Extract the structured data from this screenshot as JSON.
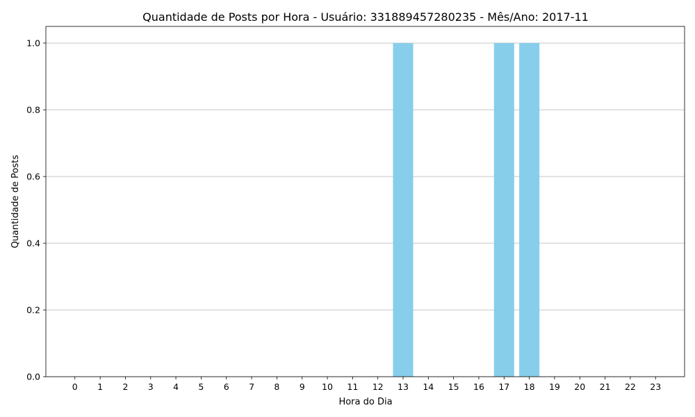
{
  "chart_data": {
    "type": "bar",
    "title": "Quantidade de Posts por Hora - Usuário: 331889457280235 - Mês/Ano: 2017-11",
    "xlabel": "Hora do Dia",
    "ylabel": "Quantidade de Posts",
    "categories": [
      "0",
      "1",
      "2",
      "3",
      "4",
      "5",
      "6",
      "7",
      "8",
      "9",
      "10",
      "11",
      "12",
      "13",
      "14",
      "15",
      "16",
      "17",
      "18",
      "19",
      "20",
      "21",
      "22",
      "23"
    ],
    "values": [
      0,
      0,
      0,
      0,
      0,
      0,
      0,
      0,
      0,
      0,
      0,
      0,
      0,
      1,
      0,
      0,
      0,
      1,
      1,
      0,
      0,
      0,
      0,
      0
    ],
    "ylim": [
      0,
      1.05
    ],
    "yticks": [
      "0.0",
      "0.2",
      "0.4",
      "0.6",
      "0.8",
      "1.0"
    ],
    "grid": "y",
    "bar_color": "#87ceeb"
  }
}
